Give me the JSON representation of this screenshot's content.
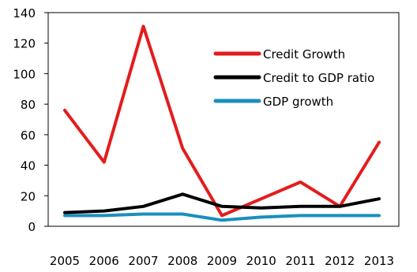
{
  "chart_data": {
    "type": "line",
    "title": "",
    "xlabel": "",
    "ylabel": "",
    "x": [
      2005,
      2006,
      2007,
      2008,
      2009,
      2010,
      2011,
      2012,
      2013
    ],
    "x_tick_labels": [
      "2005",
      "2006",
      "2007",
      "2008",
      "2009",
      "2010",
      "2011",
      "2012",
      "2013"
    ],
    "ylim": [
      0,
      140
    ],
    "y_ticks": [
      0,
      20,
      40,
      60,
      80,
      100,
      120,
      140
    ],
    "y_tick_labels": [
      "0",
      "20",
      "40",
      "60",
      "80",
      "100",
      "120",
      "140"
    ],
    "grid": false,
    "legend_position": "top-right",
    "series": [
      {
        "name": "Credit Growth",
        "color": "#e41c1c",
        "values": [
          76,
          42,
          131,
          51,
          7,
          18,
          29,
          13,
          55
        ]
      },
      {
        "name": "Credit to GDP ratio",
        "color": "#000000",
        "values": [
          9,
          10,
          13,
          21,
          13,
          12,
          13,
          13,
          18
        ]
      },
      {
        "name": "GDP growth",
        "color": "#1a8fbf",
        "values": [
          7,
          7,
          8,
          8,
          4,
          6,
          7,
          7,
          7
        ]
      }
    ]
  }
}
